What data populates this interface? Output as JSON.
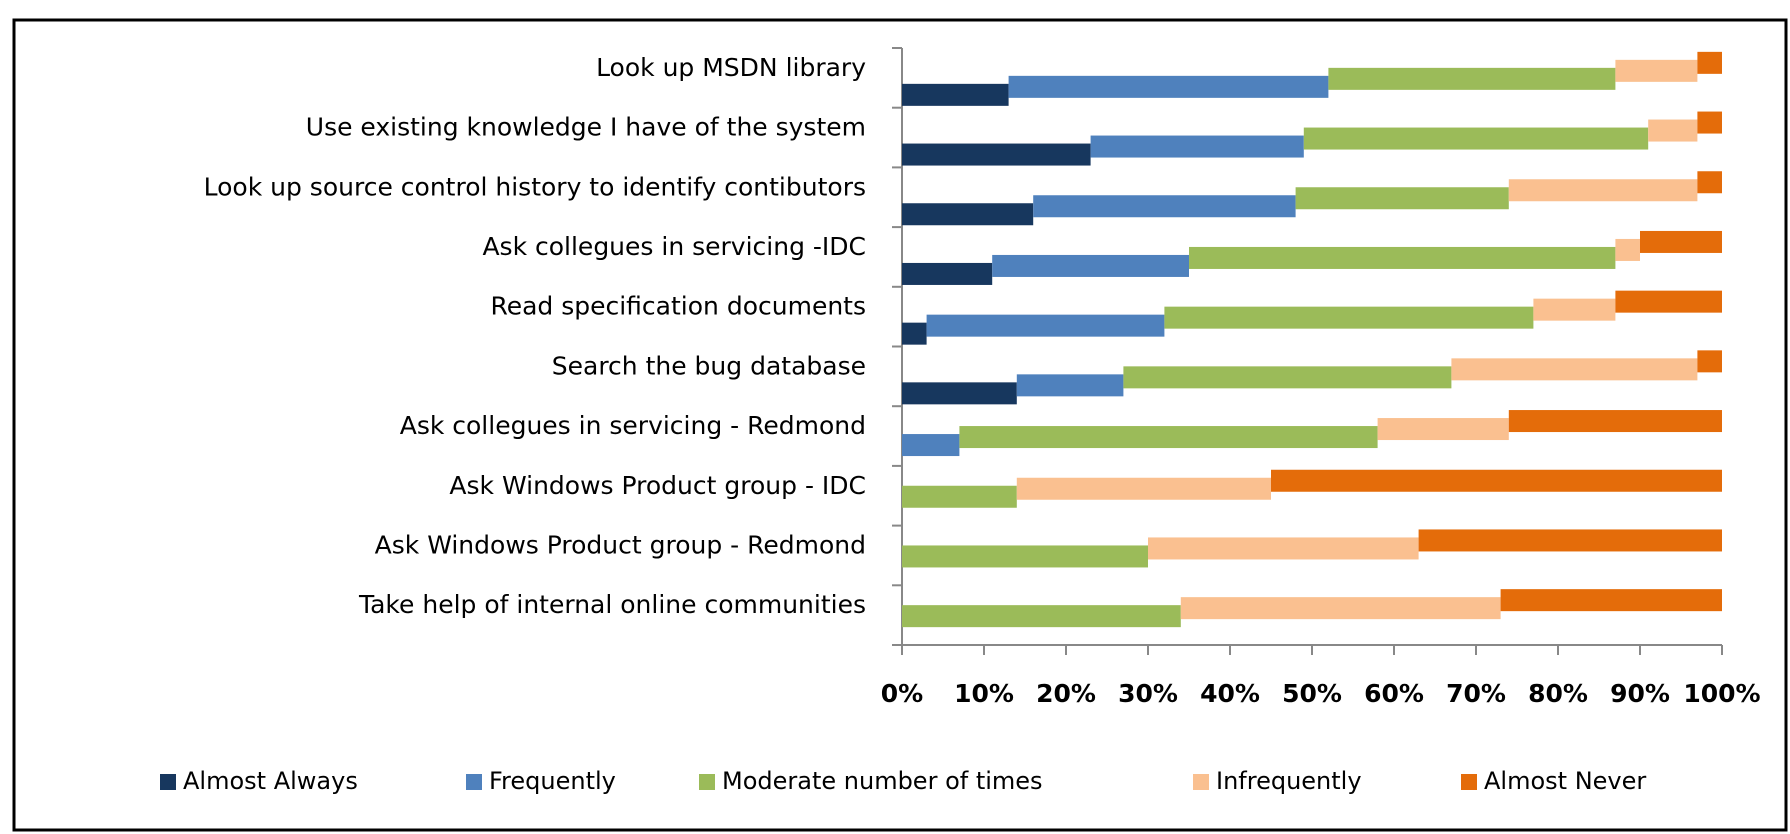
{
  "chart_data": {
    "type": "stacked-bar-horizontal",
    "categories": [
      "Look up MSDN library",
      "Use existing knowledge I have of the system",
      "Look up source control history to identify contibutors",
      "Ask collegues in servicing -IDC",
      "Read specification documents",
      "Search the bug database",
      "Ask collegues in servicing - Redmond",
      "Ask Windows Product group - IDC",
      "Ask Windows Product group - Redmond",
      "Take help of internal online communities"
    ],
    "series": [
      {
        "name": "Almost Always",
        "color": "#17375e",
        "values": [
          13,
          23,
          16,
          11,
          3,
          14,
          0,
          0,
          0,
          0
        ]
      },
      {
        "name": "Frequently",
        "color": "#4f81bd",
        "values": [
          39,
          26,
          32,
          24,
          29,
          13,
          7,
          0,
          0,
          0
        ]
      },
      {
        "name": "Moderate number of times",
        "color": "#9bbb59",
        "values": [
          35,
          42,
          26,
          52,
          45,
          40,
          51,
          14,
          30,
          34
        ]
      },
      {
        "name": "Infrequently",
        "color": "#fac090",
        "values": [
          10,
          6,
          23,
          3,
          10,
          30,
          16,
          31,
          33,
          39
        ]
      },
      {
        "name": "Almost Never",
        "color": "#e46c0a",
        "values": [
          3,
          3,
          3,
          10,
          13,
          3,
          26,
          55,
          37,
          27
        ]
      }
    ],
    "xlim": [
      0,
      100
    ],
    "xticks": [
      {
        "value": 0,
        "label": "0%"
      },
      {
        "value": 10,
        "label": "10%"
      },
      {
        "value": 20,
        "label": "20%"
      },
      {
        "value": 30,
        "label": "30%"
      },
      {
        "value": 40,
        "label": "40%"
      },
      {
        "value": 50,
        "label": "50%"
      },
      {
        "value": 60,
        "label": "60%"
      },
      {
        "value": 70,
        "label": "70%"
      },
      {
        "value": 80,
        "label": "80%"
      },
      {
        "value": 90,
        "label": "90%"
      },
      {
        "value": 100,
        "label": "100%"
      }
    ],
    "grid": false,
    "legend": "bottom"
  }
}
